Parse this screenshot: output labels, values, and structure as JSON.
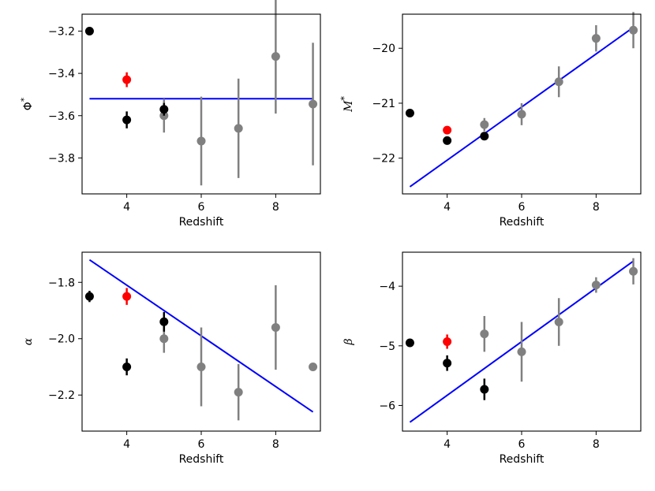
{
  "chart_data": [
    {
      "id": "phi",
      "type": "scatter",
      "title": "",
      "xlabel": "Redshift",
      "ylabel": "Φ*",
      "ylabel_main": "Φ",
      "ylabel_sup": "*",
      "ylabel_italic": false,
      "xlim": [
        2.8,
        9.2
      ],
      "ylim": [
        -3.97,
        -3.12
      ],
      "xticks": [
        4,
        6,
        8
      ],
      "yticks": [
        -3.8,
        -3.6,
        -3.4,
        -3.2
      ],
      "xtick_labels": [
        "4",
        "6",
        "8"
      ],
      "ytick_labels": [
        "−3.8",
        "−3.6",
        "−3.4",
        "−3.2"
      ],
      "series": [
        {
          "name": "black",
          "color": "#000000",
          "points": [
            {
              "x": 3,
              "y": -3.2,
              "err": 0.015
            },
            {
              "x": 4,
              "y": -3.62,
              "err": 0.04
            },
            {
              "x": 5,
              "y": -3.57,
              "err": 0.03
            }
          ]
        },
        {
          "name": "red",
          "color": "#ff0000",
          "points": [
            {
              "x": 4,
              "y": -3.43,
              "err": 0.035
            }
          ]
        },
        {
          "name": "grey",
          "color": "#808080",
          "points": [
            {
              "x": 5,
              "y": -3.6,
              "err": 0.08
            },
            {
              "x": 6,
              "y": -3.72,
              "err": 0.21
            },
            {
              "x": 7,
              "y": -3.66,
              "err": 0.235
            },
            {
              "x": 8,
              "y": -3.32,
              "err": 0.27
            },
            {
              "x": 9,
              "y": -3.545,
              "err": 0.29
            }
          ]
        }
      ],
      "fit_line": {
        "color": "#0000ff",
        "x": [
          3,
          9
        ],
        "y": [
          -3.52,
          -3.52
        ]
      }
    },
    {
      "id": "mstar",
      "type": "scatter",
      "title": "",
      "xlabel": "Redshift",
      "ylabel": "M*",
      "ylabel_main": "M",
      "ylabel_sup": "*",
      "ylabel_italic": true,
      "xlim": [
        2.8,
        9.2
      ],
      "ylim": [
        -22.65,
        -19.38
      ],
      "xticks": [
        4,
        6,
        8
      ],
      "yticks": [
        -22,
        -21,
        -20
      ],
      "xtick_labels": [
        "4",
        "6",
        "8"
      ],
      "ytick_labels": [
        "−22",
        "−21",
        "−20"
      ],
      "series": [
        {
          "name": "black",
          "color": "#000000",
          "points": [
            {
              "x": 3,
              "y": -21.18,
              "err": 0.04
            },
            {
              "x": 4,
              "y": -21.68,
              "err": 0.05
            },
            {
              "x": 5,
              "y": -21.6,
              "err": 0.04
            }
          ]
        },
        {
          "name": "red",
          "color": "#ff0000",
          "points": [
            {
              "x": 4,
              "y": -21.49,
              "err": 0.05
            }
          ]
        },
        {
          "name": "grey",
          "color": "#808080",
          "points": [
            {
              "x": 5,
              "y": -21.39,
              "err": 0.12
            },
            {
              "x": 6,
              "y": -21.2,
              "err": 0.2
            },
            {
              "x": 7,
              "y": -20.61,
              "err": 0.28
            },
            {
              "x": 8,
              "y": -19.82,
              "err": 0.24
            },
            {
              "x": 9,
              "y": -19.67,
              "err": 0.33
            }
          ]
        }
      ],
      "fit_line": {
        "color": "#0000ff",
        "x": [
          3,
          9
        ],
        "y": [
          -22.52,
          -19.62
        ]
      }
    },
    {
      "id": "alpha",
      "type": "scatter",
      "title": "",
      "xlabel": "Redshift",
      "ylabel": "α",
      "ylabel_main": "α",
      "ylabel_sup": "",
      "ylabel_italic": true,
      "xlim": [
        2.8,
        9.2
      ],
      "ylim": [
        -2.328,
        -1.693
      ],
      "xticks": [
        4,
        6,
        8
      ],
      "yticks": [
        -2.2,
        -2.0,
        -1.8
      ],
      "xtick_labels": [
        "4",
        "6",
        "8"
      ],
      "ytick_labels": [
        "−2.2",
        "−2.0",
        "−1.8"
      ],
      "series": [
        {
          "name": "black",
          "color": "#000000",
          "points": [
            {
              "x": 3,
              "y": -1.85,
              "err": 0.02
            },
            {
              "x": 4,
              "y": -2.1,
              "err": 0.03
            },
            {
              "x": 5,
              "y": -1.94,
              "err": 0.035
            }
          ]
        },
        {
          "name": "red",
          "color": "#ff0000",
          "points": [
            {
              "x": 4,
              "y": -1.85,
              "err": 0.03
            }
          ]
        },
        {
          "name": "grey",
          "color": "#808080",
          "points": [
            {
              "x": 5,
              "y": -2.0,
              "err": 0.05
            },
            {
              "x": 6,
              "y": -2.1,
              "err": 0.14
            },
            {
              "x": 7,
              "y": -2.19,
              "err": 0.1
            },
            {
              "x": 8,
              "y": -1.96,
              "err": 0.15
            },
            {
              "x": 9,
              "y": -2.1,
              "err": 0.0
            }
          ]
        }
      ],
      "fit_line": {
        "color": "#0000ff",
        "x": [
          3,
          9
        ],
        "y": [
          -1.72,
          -2.26
        ]
      }
    },
    {
      "id": "beta",
      "type": "scatter",
      "title": "",
      "xlabel": "Redshift",
      "ylabel": "β",
      "ylabel_main": "β",
      "ylabel_sup": "",
      "ylabel_italic": true,
      "xlim": [
        2.8,
        9.2
      ],
      "ylim": [
        -6.43,
        -3.43
      ],
      "xticks": [
        4,
        6,
        8
      ],
      "yticks": [
        -6,
        -5,
        -4
      ],
      "xtick_labels": [
        "4",
        "6",
        "8"
      ],
      "ytick_labels": [
        "−6",
        "−5",
        "−4"
      ],
      "series": [
        {
          "name": "black",
          "color": "#000000",
          "points": [
            {
              "x": 3,
              "y": -4.95,
              "err": 0.05
            },
            {
              "x": 4,
              "y": -5.29,
              "err": 0.13
            },
            {
              "x": 5,
              "y": -5.73,
              "err": 0.18
            }
          ]
        },
        {
          "name": "red",
          "color": "#ff0000",
          "points": [
            {
              "x": 4,
              "y": -4.93,
              "err": 0.12
            }
          ]
        },
        {
          "name": "grey",
          "color": "#808080",
          "points": [
            {
              "x": 5,
              "y": -4.8,
              "err": 0.3
            },
            {
              "x": 6,
              "y": -5.1,
              "err": 0.5
            },
            {
              "x": 7,
              "y": -4.6,
              "err": 0.4
            },
            {
              "x": 8,
              "y": -3.98,
              "err": 0.13
            },
            {
              "x": 9,
              "y": -3.75,
              "err": 0.22
            }
          ]
        }
      ],
      "fit_line": {
        "color": "#0000ff",
        "x": [
          3,
          9
        ],
        "y": [
          -6.28,
          -3.58
        ]
      }
    }
  ]
}
